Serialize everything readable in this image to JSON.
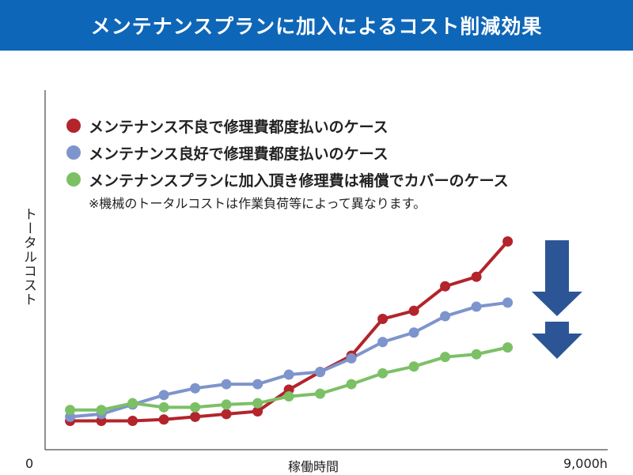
{
  "title": "メンテナンスプランに加入によるコスト削減効果",
  "note": "※機械のトータルコストは作業負荷等によって異なります。",
  "colors": {
    "header": "#0e66b8",
    "arrow": "#2c5596"
  },
  "chart_data": {
    "type": "line",
    "xlabel": "稼働時間",
    "ylabel": "トータルコスト",
    "x_tick_start": "0",
    "x_tick_end": "9,000h",
    "xlim": [
      0,
      9000
    ],
    "x": [
      400,
      900,
      1400,
      1900,
      2400,
      2900,
      3400,
      3900,
      4400,
      4900,
      5400,
      5900,
      6400,
      6900,
      7400
    ],
    "grid": false,
    "legend_position": "top-left",
    "series": [
      {
        "name": "メンテナンス不良で修理費都度払いのケース",
        "color": "#b3242b",
        "values": [
          9,
          9,
          9,
          10,
          12,
          14,
          16,
          32,
          45,
          57,
          84,
          90,
          108,
          115,
          141
        ]
      },
      {
        "name": "メンテナンス良好で修理費都度払いのケース",
        "color": "#7e94cc",
        "values": [
          12,
          14,
          21,
          28,
          33,
          36,
          36,
          43,
          45,
          55,
          67,
          74,
          86,
          93,
          96
        ]
      },
      {
        "name": "メンテナンスプランに加入頂き修理費は補償でカバーのケース",
        "color": "#7cc066",
        "values": [
          17,
          17,
          22,
          19,
          19,
          21,
          22,
          27,
          29,
          36,
          44,
          49,
          56,
          58,
          63
        ]
      }
    ]
  }
}
